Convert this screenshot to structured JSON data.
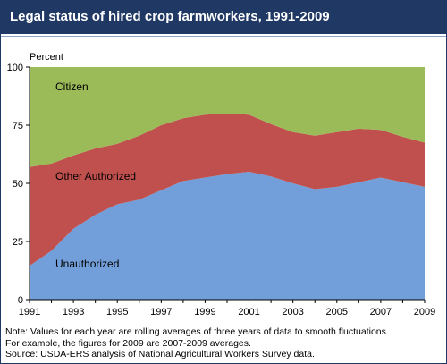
{
  "header": {
    "title": "Legal status of hired crop farmworkers, 1991-2009"
  },
  "notes": {
    "line1": "Note: Values for each year are rolling averages of three years of data to smooth fluctuations.",
    "line2": "For example, the figures for 2009 are 2007-2009 averages.",
    "source": "Source: USDA-ERS analysis of National Agricultural Workers Survey data."
  },
  "colors": {
    "unauthorized": "#729fd9",
    "other_authorized": "#c0504d",
    "citizen": "#9bbb59",
    "title_bar": "#1f3864"
  },
  "chart_data": {
    "type": "area",
    "stacked": true,
    "ylabel": "Percent",
    "ylim": [
      0,
      100
    ],
    "yticks": [
      0,
      25,
      50,
      75,
      100
    ],
    "xlim": [
      1991,
      2009
    ],
    "xticks": [
      1991,
      1993,
      1995,
      1997,
      1999,
      2001,
      2003,
      2005,
      2007,
      2009
    ],
    "x": [
      1991,
      1992,
      1993,
      1994,
      1995,
      1996,
      1997,
      1998,
      1999,
      2000,
      2001,
      2002,
      2003,
      2004,
      2005,
      2006,
      2007,
      2008,
      2009
    ],
    "series": [
      {
        "name": "Unauthorized",
        "color": "#729fd9",
        "values": [
          14.5,
          21,
          30.5,
          36.5,
          41,
          43,
          47,
          51,
          52.5,
          54,
          55,
          53,
          50,
          47.5,
          48.5,
          50.5,
          52.5,
          50.5,
          48.5
        ]
      },
      {
        "name": "Other Authorized",
        "color": "#c0504d",
        "values": [
          42.5,
          37.5,
          31.5,
          28.5,
          26,
          27.5,
          28,
          27,
          27,
          26,
          24.5,
          22.5,
          22,
          23,
          23.5,
          23,
          20.5,
          19.5,
          19
        ]
      },
      {
        "name": "Citizen",
        "color": "#9bbb59",
        "values": [
          43,
          41.5,
          38,
          35,
          33,
          29.5,
          25,
          22,
          20.5,
          20,
          20.5,
          24.5,
          28,
          29.5,
          28,
          26.5,
          27,
          30,
          32.5
        ]
      }
    ],
    "grid": false,
    "legend": "inline labels inside areas"
  }
}
